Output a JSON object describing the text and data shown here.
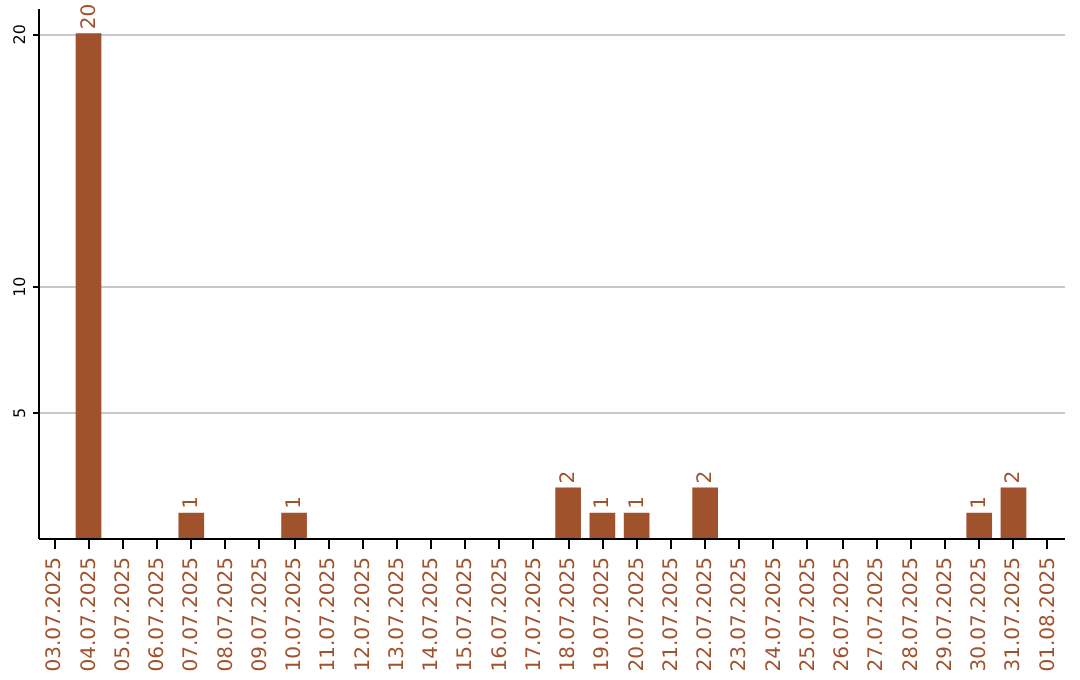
{
  "chart_data": {
    "type": "bar",
    "categories": [
      "03.07.2025",
      "04.07.2025",
      "05.07.2025",
      "06.07.2025",
      "07.07.2025",
      "08.07.2025",
      "09.07.2025",
      "10.07.2025",
      "11.07.2025",
      "12.07.2025",
      "13.07.2025",
      "14.07.2025",
      "15.07.2025",
      "16.07.2025",
      "17.07.2025",
      "18.07.2025",
      "19.07.2025",
      "20.07.2025",
      "21.07.2025",
      "22.07.2025",
      "23.07.2025",
      "24.07.2025",
      "25.07.2025",
      "26.07.2025",
      "27.07.2025",
      "28.07.2025",
      "29.07.2025",
      "30.07.2025",
      "31.07.2025",
      "01.08.2025"
    ],
    "values": [
      0,
      20,
      0,
      0,
      1,
      0,
      0,
      1,
      0,
      0,
      0,
      0,
      0,
      0,
      0,
      2,
      1,
      1,
      0,
      2,
      0,
      0,
      0,
      0,
      0,
      0,
      0,
      1,
      2,
      0
    ],
    "value_labels": [
      null,
      "20",
      null,
      null,
      "1",
      null,
      null,
      "1",
      null,
      null,
      null,
      null,
      null,
      null,
      null,
      "2",
      "1",
      "1",
      null,
      "2",
      null,
      null,
      null,
      null,
      null,
      null,
      null,
      "1",
      "2",
      null
    ],
    "color": "#a0522d",
    "ylim": [
      0,
      21
    ],
    "yticks": [
      5,
      10,
      20
    ],
    "grid": "y"
  }
}
